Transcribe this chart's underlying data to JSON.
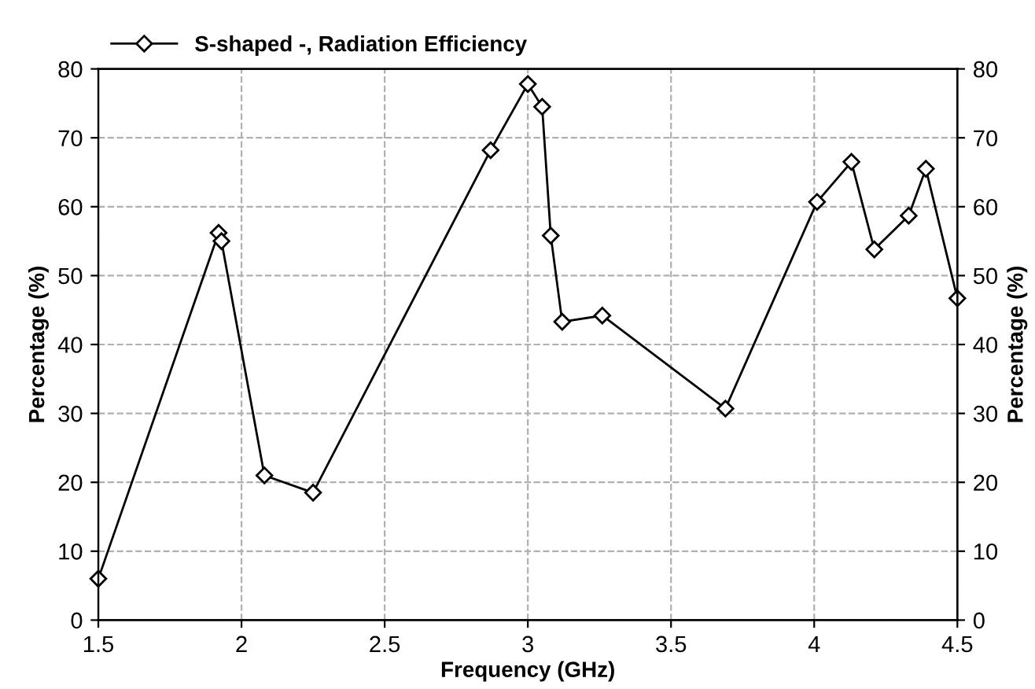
{
  "chart_data": {
    "type": "line",
    "xlabel": "Frequency (GHz)",
    "ylabel": "Percentage (%)",
    "y2label": "Percentage (%)",
    "xlim": [
      1.5,
      4.5
    ],
    "xticks": [
      1.5,
      2,
      2.5,
      3,
      3.5,
      4,
      4.5
    ],
    "ylim": [
      0,
      80
    ],
    "yticks": [
      0,
      10,
      20,
      30,
      40,
      50,
      60,
      70,
      80
    ],
    "y2lim": [
      0,
      80
    ],
    "y2ticks": [
      0,
      10,
      20,
      30,
      40,
      50,
      60,
      70,
      80
    ],
    "grid": true,
    "legend": "top left",
    "marker": "diamond",
    "line_style": "solid",
    "series": [
      {
        "name": "S-shaped -, Radiation Efficiency",
        "color": "#000000",
        "x": [
          1.5,
          1.92,
          1.93,
          2.08,
          2.25,
          2.87,
          3.0,
          3.05,
          3.08,
          3.12,
          3.26,
          3.69,
          4.01,
          4.13,
          4.21,
          4.33,
          4.39,
          4.5
        ],
        "values": [
          6,
          56.2,
          55,
          21,
          18.5,
          68.2,
          77.8,
          74.5,
          55.8,
          43.3,
          44.2,
          30.7,
          60.7,
          66.5,
          53.8,
          58.7,
          65.5,
          46.7
        ]
      }
    ]
  }
}
